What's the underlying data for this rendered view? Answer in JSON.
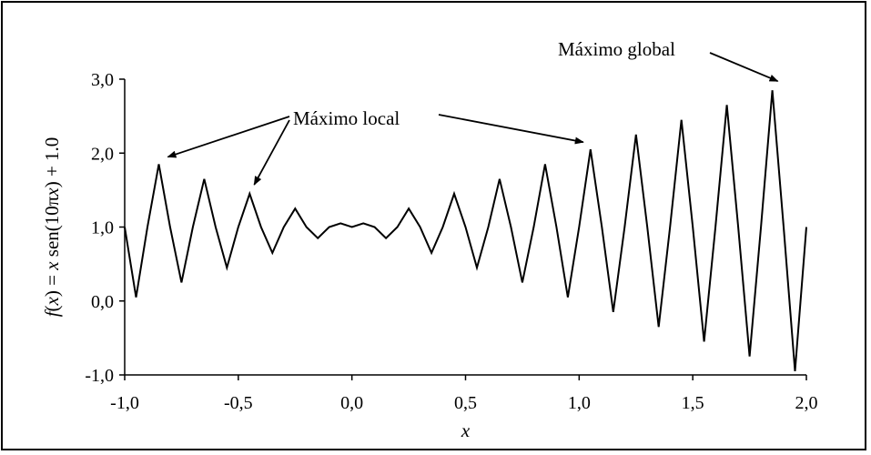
{
  "chart_data": {
    "type": "line",
    "title": "",
    "xlabel": "x",
    "ylabel_parts": {
      "f": "f",
      "open_paren": "(",
      "x1": "x",
      "mid": ") = ",
      "x2": "x",
      "sen": " sen(10π",
      "x3": "x",
      "end": ") + 1.0"
    },
    "function": "f(x) = x sen(10πx) + 1.0",
    "xlim": [
      -1.0,
      2.0
    ],
    "ylim": [
      -1.0,
      3.0
    ],
    "x_ticks": [
      {
        "value": -1.0,
        "label": "-1,0"
      },
      {
        "value": -0.5,
        "label": "-0,5"
      },
      {
        "value": 0.0,
        "label": "0,0"
      },
      {
        "value": 0.5,
        "label": "0,5"
      },
      {
        "value": 1.0,
        "label": "1,0"
      },
      {
        "value": 1.5,
        "label": "1,5"
      },
      {
        "value": 2.0,
        "label": "2,0"
      }
    ],
    "y_ticks": [
      {
        "value": -1.0,
        "label": "-1,0"
      },
      {
        "value": 0.0,
        "label": "0,0"
      },
      {
        "value": 1.0,
        "label": "1,0"
      },
      {
        "value": 2.0,
        "label": "2,0"
      },
      {
        "value": 3.0,
        "label": "3,0"
      }
    ],
    "series": [
      {
        "x": [
          -1.0,
          -0.95,
          -0.9,
          -0.85,
          -0.8,
          -0.75,
          -0.7,
          -0.65,
          -0.6,
          -0.55,
          -0.5,
          -0.45,
          -0.4,
          -0.35,
          -0.3,
          -0.25,
          -0.2,
          -0.15,
          -0.1,
          -0.05,
          0.0,
          0.05,
          0.1,
          0.15,
          0.2,
          0.25,
          0.3,
          0.35,
          0.4,
          0.45,
          0.5,
          0.55,
          0.6,
          0.65,
          0.7,
          0.75,
          0.8,
          0.85,
          0.9,
          0.95,
          1.0,
          1.05,
          1.1,
          1.15,
          1.2,
          1.25,
          1.3,
          1.35,
          1.4,
          1.45,
          1.5,
          1.55,
          1.6,
          1.65,
          1.7,
          1.75,
          1.8,
          1.85,
          1.9,
          1.95,
          2.0
        ],
        "y": [
          1.0,
          0.05,
          1.0,
          1.85,
          1.0,
          0.25,
          1.0,
          1.65,
          1.0,
          0.45,
          1.0,
          1.45,
          1.0,
          0.65,
          1.0,
          1.25,
          1.0,
          0.85,
          1.0,
          1.05,
          1.0,
          1.05,
          1.0,
          0.85,
          1.0,
          1.25,
          1.0,
          0.65,
          1.0,
          1.45,
          1.0,
          0.45,
          1.0,
          1.65,
          1.0,
          0.25,
          1.0,
          1.85,
          1.0,
          0.05,
          1.0,
          2.05,
          1.0,
          -0.15,
          1.0,
          2.25,
          1.0,
          -0.35,
          1.0,
          2.45,
          1.0,
          -0.55,
          1.0,
          2.65,
          1.0,
          -0.75,
          1.0,
          2.85,
          1.0,
          -0.95,
          1.0
        ]
      }
    ],
    "annotations": [
      {
        "text": "Máximo local",
        "targets": [
          [
            -0.85,
            1.85
          ],
          [
            -0.45,
            1.45
          ],
          [
            1.05,
            2.05
          ]
        ]
      },
      {
        "text": "Máximo global",
        "targets": [
          [
            1.85,
            2.85
          ]
        ]
      }
    ],
    "grid": false,
    "legend": "none"
  }
}
